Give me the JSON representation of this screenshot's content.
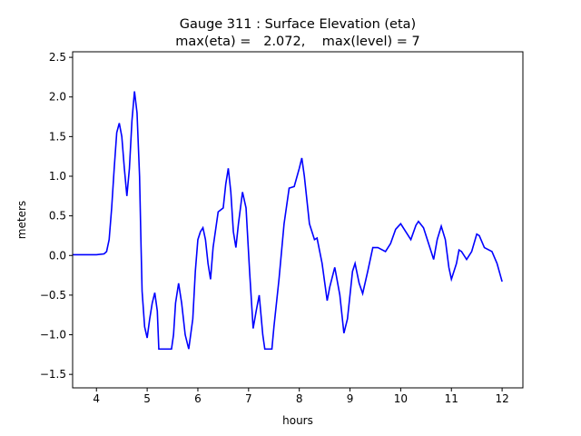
{
  "chart_data": {
    "type": "line",
    "title": "Gauge 311 : Surface Elevation (eta)",
    "subtitle": "max(eta) =   2.072,    max(level) = 7",
    "x_label": "hours",
    "y_label": "meters",
    "xlim": [
      3.53,
      12.41
    ],
    "ylim": [
      -1.67,
      2.57
    ],
    "xticks": [
      4,
      5,
      6,
      7,
      8,
      9,
      10,
      11,
      12
    ],
    "yticks": [
      {
        "value": -1.5,
        "label": "−1.5"
      },
      {
        "value": -1.0,
        "label": "−1.0"
      },
      {
        "value": -0.5,
        "label": "−0.5"
      },
      {
        "value": 0,
        "label": "0.0"
      },
      {
        "value": 0.5,
        "label": "0.5"
      },
      {
        "value": 1.0,
        "label": "1.0"
      },
      {
        "value": 1.5,
        "label": "1.5"
      },
      {
        "value": 2.0,
        "label": "2.0"
      },
      {
        "value": 2.5,
        "label": "2.5"
      }
    ],
    "grid": false,
    "x": [
      3.53,
      3.8,
      4.0,
      4.15,
      4.2,
      4.25,
      4.3,
      4.35,
      4.4,
      4.45,
      4.5,
      4.55,
      4.6,
      4.65,
      4.7,
      4.75,
      4.8,
      4.85,
      4.88,
      4.9,
      4.95,
      5.0,
      5.05,
      5.1,
      5.15,
      5.2,
      5.23,
      5.48,
      5.52,
      5.56,
      5.62,
      5.68,
      5.75,
      5.82,
      5.9,
      5.95,
      6.0,
      6.05,
      6.1,
      6.15,
      6.2,
      6.25,
      6.3,
      6.4,
      6.5,
      6.55,
      6.6,
      6.65,
      6.7,
      6.75,
      6.8,
      6.88,
      6.95,
      7.02,
      7.09,
      7.15,
      7.21,
      7.28,
      7.32,
      7.46,
      7.5,
      7.6,
      7.7,
      7.8,
      7.9,
      8.0,
      8.05,
      8.1,
      8.2,
      8.3,
      8.35,
      8.45,
      8.55,
      8.6,
      8.7,
      8.8,
      8.88,
      8.95,
      9.05,
      9.1,
      9.18,
      9.25,
      9.35,
      9.45,
      9.55,
      9.7,
      9.8,
      9.9,
      10.0,
      10.1,
      10.2,
      10.3,
      10.35,
      10.45,
      10.55,
      10.65,
      10.72,
      10.8,
      10.88,
      10.95,
      11.0,
      11.1,
      11.15,
      11.2,
      11.3,
      11.4,
      11.5,
      11.55,
      11.65,
      11.8,
      11.9,
      12.0
    ],
    "series": [
      {
        "name": "eta",
        "color": "#0000ff",
        "values": [
          0.01,
          0.01,
          0.01,
          0.02,
          0.05,
          0.2,
          0.6,
          1.1,
          1.55,
          1.67,
          1.5,
          1.1,
          0.75,
          1.1,
          1.7,
          2.07,
          1.8,
          1.0,
          0.1,
          -0.45,
          -0.9,
          -1.04,
          -0.8,
          -0.6,
          -0.47,
          -0.7,
          -1.18,
          -1.18,
          -1.0,
          -0.6,
          -0.35,
          -0.6,
          -1.0,
          -1.18,
          -0.8,
          -0.2,
          0.2,
          0.3,
          0.35,
          0.2,
          -0.1,
          -0.3,
          0.1,
          0.55,
          0.6,
          0.9,
          1.1,
          0.8,
          0.3,
          0.1,
          0.4,
          0.8,
          0.6,
          -0.2,
          -0.92,
          -0.7,
          -0.5,
          -1.0,
          -1.18,
          -1.18,
          -0.9,
          -0.3,
          0.4,
          0.85,
          0.87,
          1.1,
          1.23,
          1.0,
          0.4,
          0.2,
          0.22,
          -0.1,
          -0.57,
          -0.4,
          -0.15,
          -0.5,
          -0.98,
          -0.8,
          -0.2,
          -0.1,
          -0.35,
          -0.48,
          -0.2,
          0.1,
          0.1,
          0.05,
          0.15,
          0.33,
          0.4,
          0.3,
          0.2,
          0.38,
          0.43,
          0.35,
          0.15,
          -0.05,
          0.2,
          0.37,
          0.2,
          -0.15,
          -0.3,
          -0.1,
          0.07,
          0.05,
          -0.05,
          0.05,
          0.27,
          0.25,
          0.1,
          0.05,
          -0.1,
          -0.33
        ]
      }
    ]
  }
}
